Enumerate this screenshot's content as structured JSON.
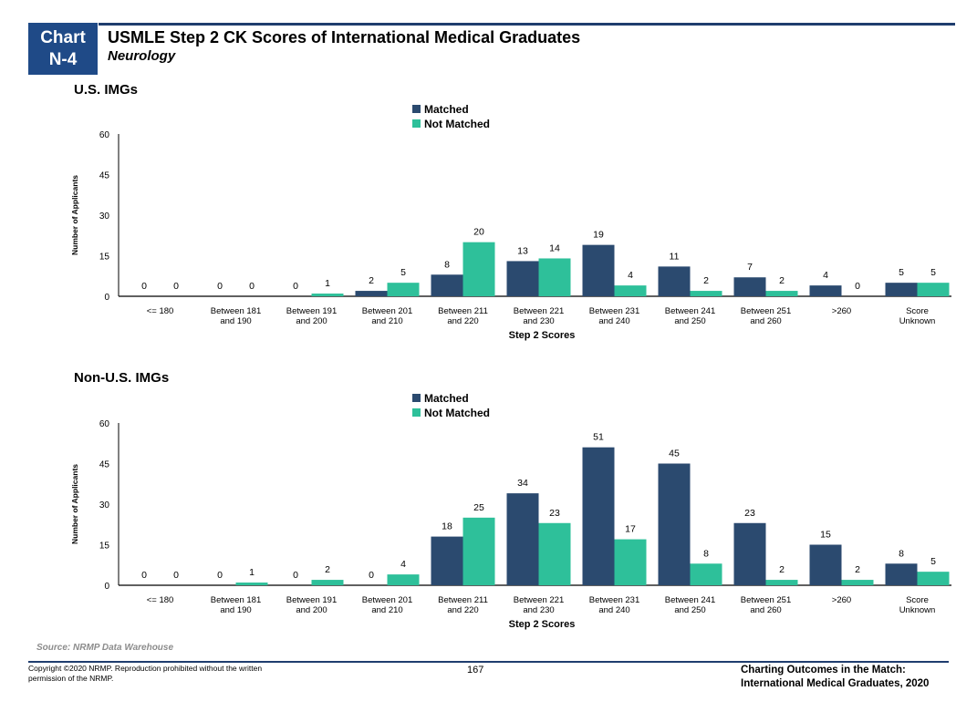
{
  "header": {
    "badge_line1": "Chart",
    "badge_line2": "N-4",
    "title": "USMLE Step 2 CK Scores of International Medical Graduates",
    "subtitle": "Neurology"
  },
  "colors": {
    "matched": "#2b4a6f",
    "not_matched": "#2ec09a",
    "rule": "#1f3d6e",
    "badge": "#1f4a87"
  },
  "chart_data": [
    {
      "type": "bar",
      "section_title": "U.S. IMGs",
      "title": "U.S. IMGs",
      "xlabel": "Step 2 Scores",
      "ylabel": "Number of Applicants",
      "ylim": [
        0,
        60
      ],
      "yticks": [
        0,
        15,
        30,
        45,
        60
      ],
      "legend": [
        "Matched",
        "Not Matched"
      ],
      "legend_position": "top-center",
      "grid": false,
      "categories": [
        [
          "<= 180"
        ],
        [
          "Between 181",
          "and 190"
        ],
        [
          "Between 191",
          "and 200"
        ],
        [
          "Between 201",
          "and 210"
        ],
        [
          "Between 211",
          "and 220"
        ],
        [
          "Between 221",
          "and 230"
        ],
        [
          "Between 231",
          "and 240"
        ],
        [
          "Between 241",
          "and 250"
        ],
        [
          "Between 251",
          "and 260"
        ],
        [
          ">260"
        ],
        [
          "Score",
          "Unknown"
        ]
      ],
      "series": [
        {
          "name": "Matched",
          "values": [
            0,
            0,
            0,
            2,
            8,
            13,
            19,
            11,
            7,
            4,
            5
          ]
        },
        {
          "name": "Not Matched",
          "values": [
            0,
            0,
            1,
            5,
            20,
            14,
            4,
            2,
            2,
            0,
            5
          ]
        }
      ]
    },
    {
      "type": "bar",
      "section_title": "Non-U.S. IMGs",
      "title": "Non-U.S. IMGs",
      "xlabel": "Step 2 Scores",
      "ylabel": "Number of Applicants",
      "ylim": [
        0,
        60
      ],
      "yticks": [
        0,
        15,
        30,
        45,
        60
      ],
      "legend": [
        "Matched",
        "Not Matched"
      ],
      "legend_position": "top-center",
      "grid": false,
      "categories": [
        [
          "<= 180"
        ],
        [
          "Between 181",
          "and 190"
        ],
        [
          "Between 191",
          "and 200"
        ],
        [
          "Between 201",
          "and 210"
        ],
        [
          "Between 211",
          "and 220"
        ],
        [
          "Between 221",
          "and 230"
        ],
        [
          "Between 231",
          "and 240"
        ],
        [
          "Between 241",
          "and 250"
        ],
        [
          "Between 251",
          "and 260"
        ],
        [
          ">260"
        ],
        [
          "Score",
          "Unknown"
        ]
      ],
      "series": [
        {
          "name": "Matched",
          "values": [
            0,
            0,
            0,
            0,
            18,
            34,
            51,
            45,
            23,
            15,
            8
          ]
        },
        {
          "name": "Not Matched",
          "values": [
            0,
            1,
            2,
            4,
            25,
            23,
            17,
            8,
            2,
            2,
            5
          ]
        }
      ]
    }
  ],
  "footer": {
    "source": "Source: NRMP Data Warehouse",
    "copyright": "Copyright ©2020 NRMP. Reproduction prohibited without the written permission of the NRMP.",
    "page_number": "167",
    "publication_line1": "Charting Outcomes in the Match:",
    "publication_line2": "International Medical Graduates, 2020"
  }
}
